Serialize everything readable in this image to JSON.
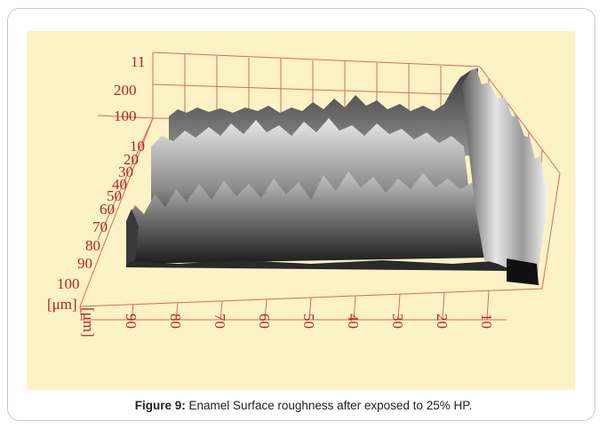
{
  "figure": {
    "caption_label": "Figure 9:",
    "caption_text": " Enamel Surface roughness after exposed to 25% HP."
  },
  "plot": {
    "type": "3d surface (AFM/profilometry)",
    "z_ticks": [
      "200",
      "100"
    ],
    "z_top_tick": "11",
    "y_ticks": [
      "10",
      "20",
      "30",
      "40",
      "50",
      "60",
      "70",
      "80",
      "90",
      "100"
    ],
    "y_unit": "[μm]",
    "x_ticks": [
      "90",
      "80",
      "70",
      "60",
      "50",
      "40",
      "30",
      "20",
      "10"
    ],
    "x_unit": "[μm]",
    "colors": {
      "grid": "#d96a55",
      "labels": "#b5222a",
      "panel_bg": "#fbf2c6",
      "surface_light": "#f2f2f2",
      "surface_dark": "#141414"
    }
  }
}
